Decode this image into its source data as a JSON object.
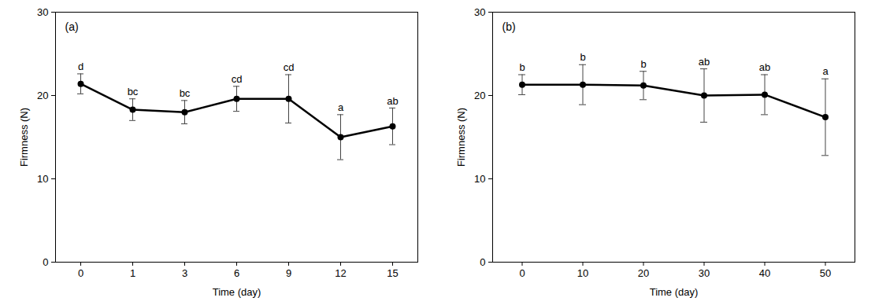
{
  "chart_data": [
    {
      "type": "line",
      "annotation": "(a)",
      "x_label": "Time (day)",
      "y_label": "Firmness (N)",
      "categories": [
        "0",
        "1",
        "3",
        "6",
        "9",
        "12",
        "15"
      ],
      "values": [
        21.4,
        18.3,
        18.0,
        19.6,
        19.6,
        15.0,
        16.3
      ],
      "errors": [
        1.2,
        1.3,
        1.4,
        1.5,
        2.9,
        2.7,
        2.2
      ],
      "letters": [
        "d",
        "bc",
        "bc",
        "cd",
        "cd",
        "a",
        "ab"
      ],
      "color": "#000000",
      "marker": "circle",
      "ylim": [
        0,
        30
      ],
      "yticks": [
        0,
        10,
        20,
        30
      ]
    },
    {
      "type": "line",
      "annotation": "(b)",
      "x_label": "Time (day)",
      "y_label": "Firmness (N)",
      "categories": [
        "0",
        "10",
        "20",
        "30",
        "40",
        "50"
      ],
      "values": [
        21.3,
        21.3,
        21.2,
        20.0,
        20.1,
        17.4
      ],
      "errors": [
        1.2,
        2.4,
        1.7,
        3.2,
        2.4,
        4.6
      ],
      "letters": [
        "b",
        "b",
        "b",
        "ab",
        "ab",
        "a"
      ],
      "color": "#000000",
      "marker": "circle",
      "ylim": [
        0,
        30
      ],
      "yticks": [
        0,
        10,
        20,
        30
      ]
    }
  ]
}
